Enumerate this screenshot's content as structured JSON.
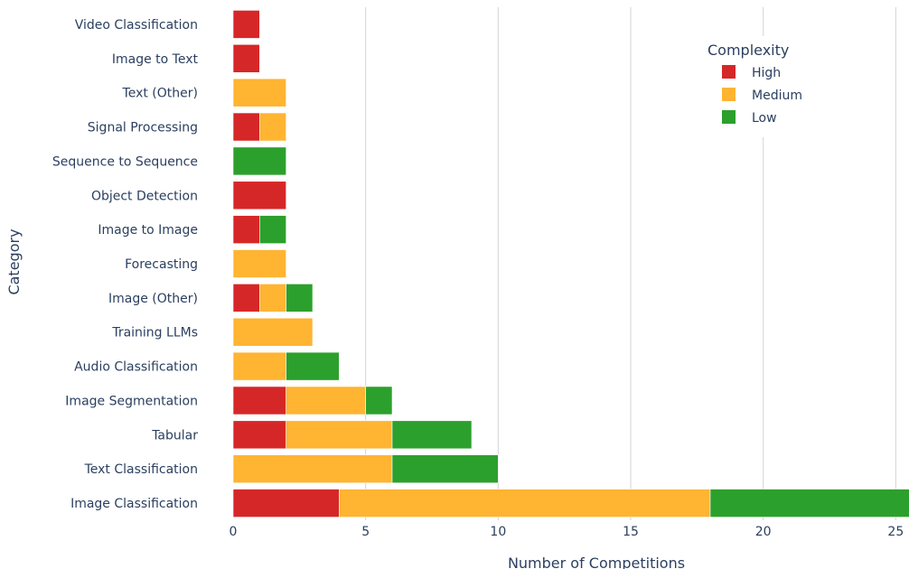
{
  "chart_data": {
    "type": "bar",
    "orientation": "horizontal",
    "barmode": "stack",
    "title": "",
    "xlabel": "Number of Competitions",
    "ylabel": "Category",
    "xlim": [
      0,
      25.5
    ],
    "xticks": [
      0,
      5,
      10,
      15,
      20,
      25
    ],
    "grid": "vertical",
    "legend_title": "Complexity",
    "legend_position": "top-right",
    "categories": [
      "Image Classification",
      "Text Classification",
      "Tabular",
      "Image Segmentation",
      "Audio Classification",
      "Training LLMs",
      "Image (Other)",
      "Forecasting",
      "Image to Image",
      "Object Detection",
      "Sequence to Sequence",
      "Signal Processing",
      "Text (Other)",
      "Image to Text",
      "Video Classification"
    ],
    "series": [
      {
        "name": "High",
        "color": "#d62728",
        "values": [
          4,
          0,
          2,
          2,
          0,
          0,
          1,
          0,
          1,
          2,
          0,
          1,
          0,
          1,
          1
        ]
      },
      {
        "name": "Medium",
        "color": "#ffb432",
        "values": [
          14,
          6,
          4,
          3,
          2,
          3,
          1,
          2,
          0,
          0,
          0,
          1,
          2,
          0,
          0
        ]
      },
      {
        "name": "Low",
        "color": "#2ca02c",
        "values": [
          8,
          4,
          3,
          1,
          2,
          0,
          1,
          0,
          1,
          0,
          2,
          0,
          0,
          0,
          0
        ]
      }
    ]
  }
}
